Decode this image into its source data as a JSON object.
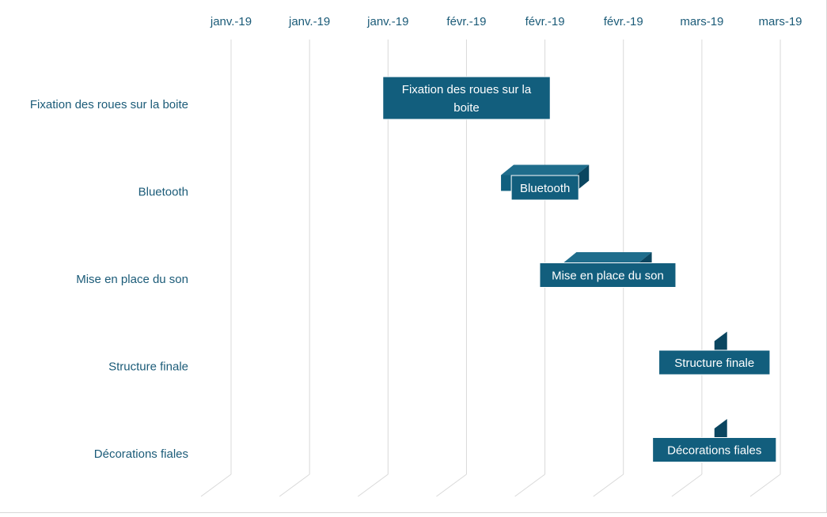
{
  "chart_data": {
    "type": "bar",
    "subtype": "gantt-3d-horizontal",
    "title": "",
    "xlabel": "",
    "ylabel": "",
    "x_tick_labels": [
      "janv.-19",
      "janv.-19",
      "janv.-19",
      "févr.-19",
      "févr.-19",
      "févr.-19",
      "mars-19",
      "mars-19"
    ],
    "x_axis_position": "top",
    "xlim": [
      "2019-01-01",
      "2019-03-30"
    ],
    "tick_interval_days": 12.5,
    "grid": true,
    "categories": [
      "Fixation des roues sur la boite",
      "Bluetooth",
      "Mise en place du son",
      "Structure finale",
      "Décorations fiales"
    ],
    "series": [
      {
        "start": [
          "2019-01-27",
          "2019-02-13",
          "2019-02-23",
          "2019-03-19",
          "2019-03-19"
        ],
        "end": [
          "2019-02-17",
          "2019-02-25",
          "2019-03-07",
          "2019-03-19",
          "2019-03-19"
        ]
      }
    ],
    "data_labels": [
      "Fixation des roues sur la boite",
      "Bluetooth",
      "Mise en place du son",
      "Structure finale",
      "Décorations fiales"
    ],
    "colors": {
      "bar_front": "#10607f",
      "bar_top": "#1f6d8c",
      "bar_side": "#0b4660",
      "label_box": "#125e7d",
      "label_text": "#ffffff",
      "axis_text": "#1b5b78",
      "gridline": "#d9d9d9"
    }
  }
}
